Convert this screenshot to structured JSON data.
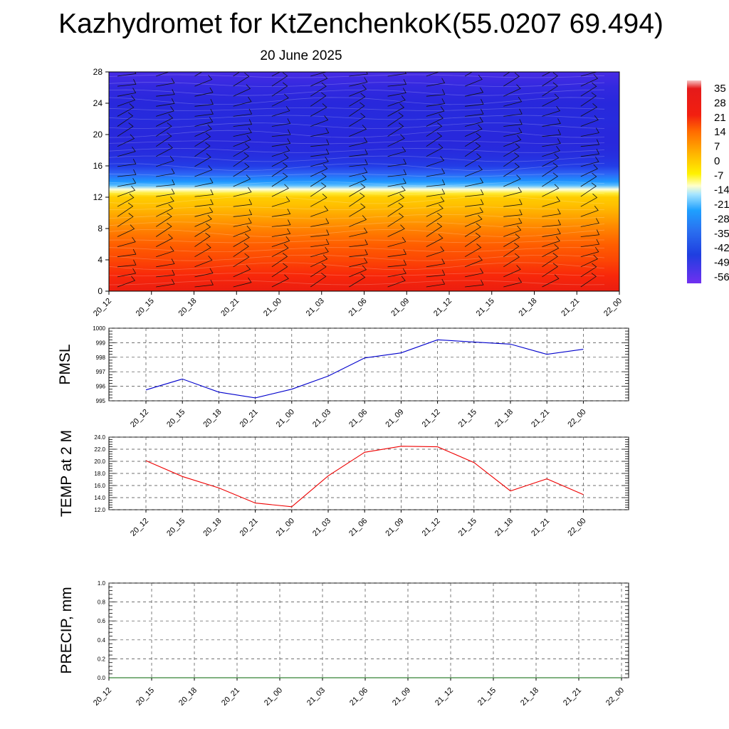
{
  "title": "Kazhydromet for KtZenchenkoK(55.0207 69.494)",
  "subtitle": "20 June 2025",
  "colors": {
    "pmsl_line": "#0000cc",
    "temp_line": "#ee0000",
    "precip_line": "#006400"
  },
  "chart_data": [
    {
      "type": "heatmap",
      "name": "vertical-temperature-section",
      "x_labels": [
        "20_12",
        "20_15",
        "20_18",
        "20_21",
        "21_00",
        "21_03",
        "21_06",
        "21_09",
        "21_12",
        "21_15",
        "21_18",
        "21_21",
        "22_00"
      ],
      "y_ticks": [
        "0",
        "4",
        "8",
        "12",
        "16",
        "20",
        "24",
        "28"
      ],
      "ylim": [
        0,
        28
      ],
      "colorbar_labels": [
        "35",
        "28",
        "21",
        "14",
        "7",
        "0",
        "-7",
        "-14",
        "-21",
        "-28",
        "-35",
        "-42",
        "-49",
        "-56"
      ],
      "wind_barbs": true,
      "levels": [
        0,
        2,
        4,
        6,
        8,
        10,
        11,
        12,
        12.5,
        13,
        13.5,
        14,
        15,
        16,
        17,
        18,
        19,
        20,
        22,
        24,
        26,
        28
      ],
      "values": [
        25,
        21,
        17,
        14,
        10,
        5,
        2,
        0,
        -6,
        -14,
        -21,
        -28,
        -35,
        -42,
        -46,
        -48,
        -49,
        -49,
        -48,
        -49,
        -50,
        -52
      ]
    },
    {
      "type": "line",
      "name": "pmsl",
      "ylabel": "PMSL",
      "x": [
        "20_12",
        "20_15",
        "20_18",
        "20_21",
        "21_00",
        "21_03",
        "21_06",
        "21_09",
        "21_12",
        "21_15",
        "21_18",
        "21_21",
        "22_00"
      ],
      "y_ticks": [
        "995",
        "996",
        "997",
        "998",
        "999",
        "1000"
      ],
      "ylim": [
        995,
        1000
      ],
      "values": [
        995.75,
        996.5,
        995.6,
        995.2,
        995.8,
        996.7,
        997.95,
        998.3,
        999.2,
        999.05,
        998.9,
        998.2,
        998.55
      ]
    },
    {
      "type": "line",
      "name": "temp-2m",
      "ylabel": "TEMP at 2 M",
      "x": [
        "20_12",
        "20_15",
        "20_18",
        "20_21",
        "21_00",
        "21_03",
        "21_06",
        "21_09",
        "21_12",
        "21_15",
        "21_18",
        "21_21",
        "22_00"
      ],
      "y_ticks": [
        "12.0",
        "14.0",
        "16.0",
        "18.0",
        "20.0",
        "22.0",
        "24.0"
      ],
      "ylim": [
        12,
        24
      ],
      "values": [
        20.1,
        17.5,
        15.6,
        13.1,
        12.5,
        17.6,
        21.5,
        22.5,
        22.4,
        19.8,
        15.1,
        17.1,
        14.5
      ]
    },
    {
      "type": "line",
      "name": "precip",
      "ylabel": "PRECIP, mm",
      "x": [
        "20_12",
        "20_15",
        "20_18",
        "20_21",
        "21_00",
        "21_03",
        "21_06",
        "21_09",
        "21_12",
        "21_15",
        "21_18",
        "21_21",
        "22_00"
      ],
      "y_ticks": [
        "0.0",
        "0.2",
        "0.4",
        "0.6",
        "0.8",
        "1.0"
      ],
      "ylim": [
        0,
        1
      ],
      "values": [
        0,
        0,
        0,
        0,
        0,
        0,
        0,
        0,
        0,
        0,
        0,
        0,
        0
      ]
    }
  ]
}
